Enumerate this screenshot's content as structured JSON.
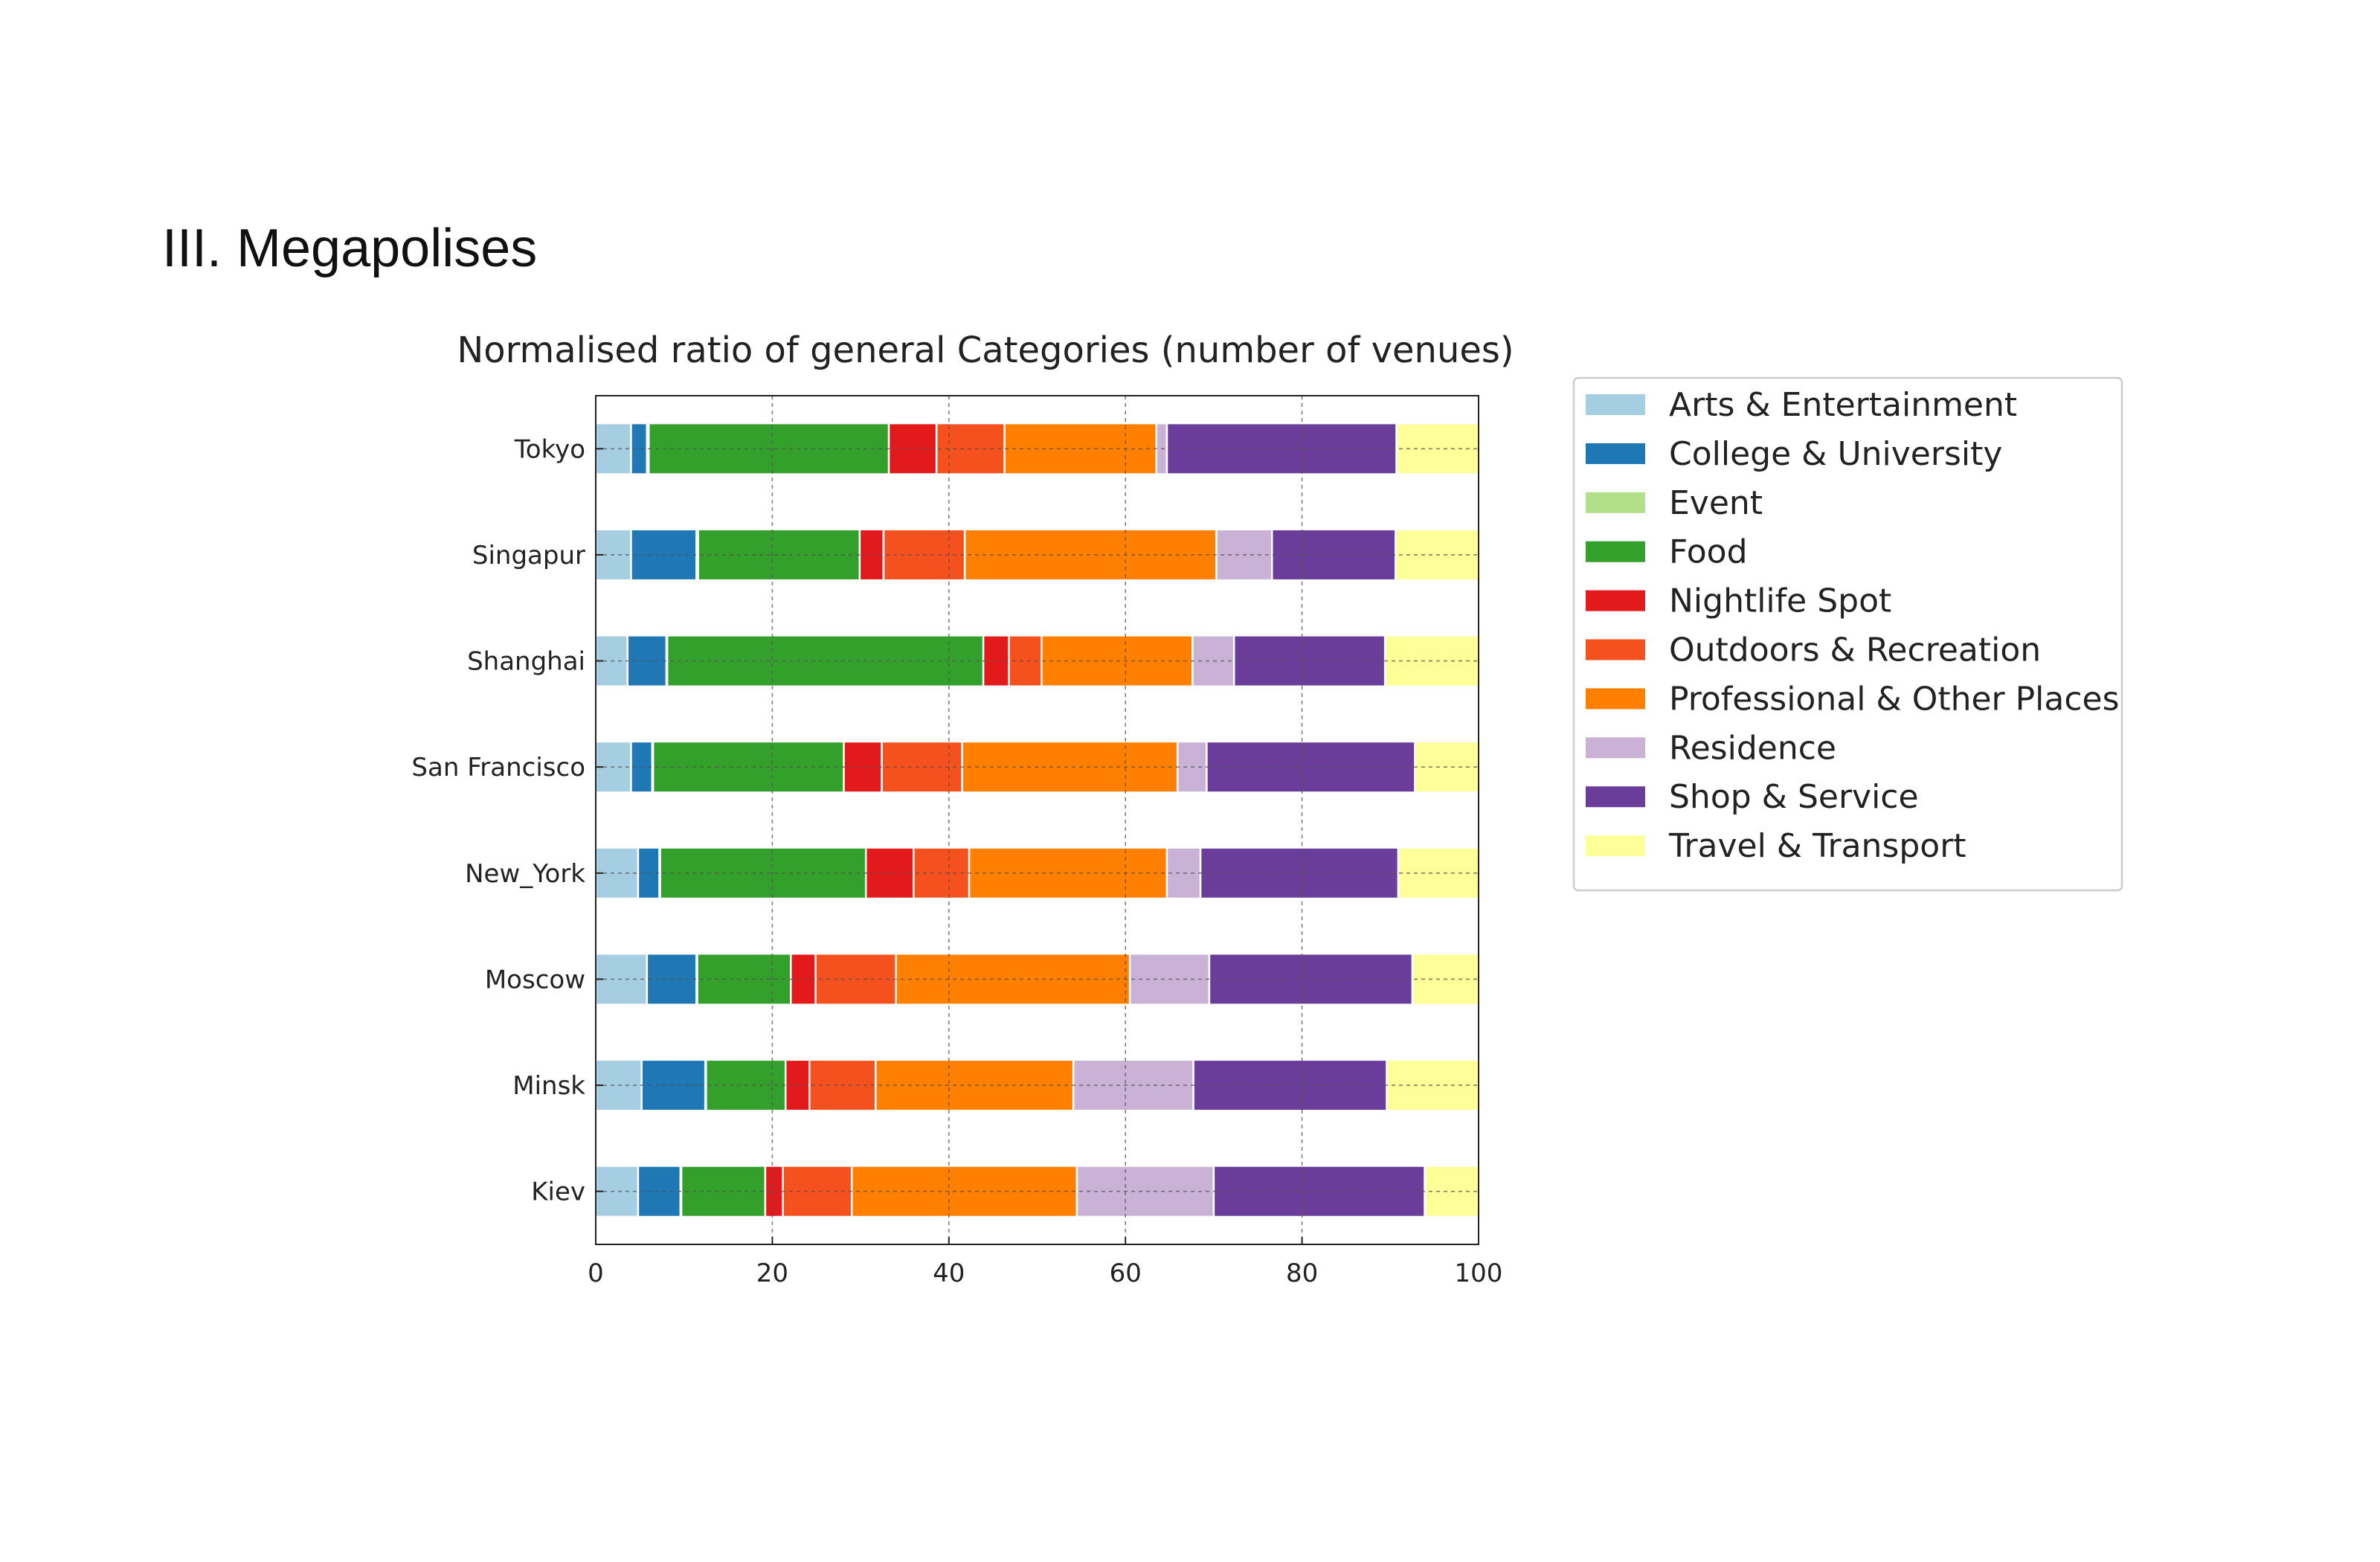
{
  "section_heading": "III. Megapolises",
  "chart_data": {
    "type": "bar",
    "orientation": "horizontal",
    "stacked": true,
    "title": "Normalised ratio of general Categories (number of venues)",
    "xlabel": "",
    "ylabel": "",
    "xlim": [
      0,
      100
    ],
    "xticks": [
      "0",
      "20",
      "40",
      "60",
      "80",
      "100"
    ],
    "grid": true,
    "legend_position": "outside-right",
    "categories": [
      "Tokyo",
      "Singapur",
      "Shanghai",
      "San Francisco",
      "New_York",
      "Moscow",
      "Minsk",
      "Kiev"
    ],
    "series": [
      {
        "name": "Arts & Entertainment",
        "color": "#a6cee3",
        "values": [
          4.0,
          4.0,
          3.6,
          4.0,
          4.8,
          5.8,
          5.2,
          4.8
        ]
      },
      {
        "name": "College & University",
        "color": "#1f78b4",
        "values": [
          1.8,
          7.4,
          4.4,
          2.4,
          2.4,
          5.6,
          7.2,
          4.8
        ]
      },
      {
        "name": "Event",
        "color": "#b2df8a",
        "values": [
          0.2,
          0.2,
          0.1,
          0.1,
          0.1,
          0.1,
          0.1,
          0.1
        ]
      },
      {
        "name": "Food",
        "color": "#33a02c",
        "values": [
          27.2,
          18.3,
          35.8,
          21.6,
          23.3,
          10.6,
          9.0,
          9.5
        ]
      },
      {
        "name": "Nightlife Spot",
        "color": "#e31a1c",
        "values": [
          5.4,
          2.7,
          2.9,
          4.3,
          5.4,
          2.8,
          2.7,
          2.0
        ]
      },
      {
        "name": "Outdoors & Recreation",
        "color": "#f4511e",
        "values": [
          7.7,
          9.2,
          3.7,
          9.1,
          6.3,
          9.1,
          7.5,
          7.8
        ]
      },
      {
        "name": "Professional & Other Places",
        "color": "#ff7f00",
        "values": [
          17.2,
          28.5,
          17.1,
          24.4,
          22.4,
          26.5,
          22.4,
          25.5
        ]
      },
      {
        "name": "Residence",
        "color": "#cab2d6",
        "values": [
          1.2,
          6.3,
          4.7,
          3.3,
          3.8,
          9.0,
          13.6,
          15.5
        ]
      },
      {
        "name": "Shop & Service",
        "color": "#6a3d9a",
        "values": [
          26.0,
          14.0,
          17.1,
          23.6,
          22.4,
          23.0,
          21.9,
          23.9
        ]
      },
      {
        "name": "Travel & Transport",
        "color": "#ffff99",
        "values": [
          9.3,
          9.4,
          10.6,
          7.2,
          9.2,
          7.5,
          10.4,
          6.1
        ]
      }
    ]
  }
}
